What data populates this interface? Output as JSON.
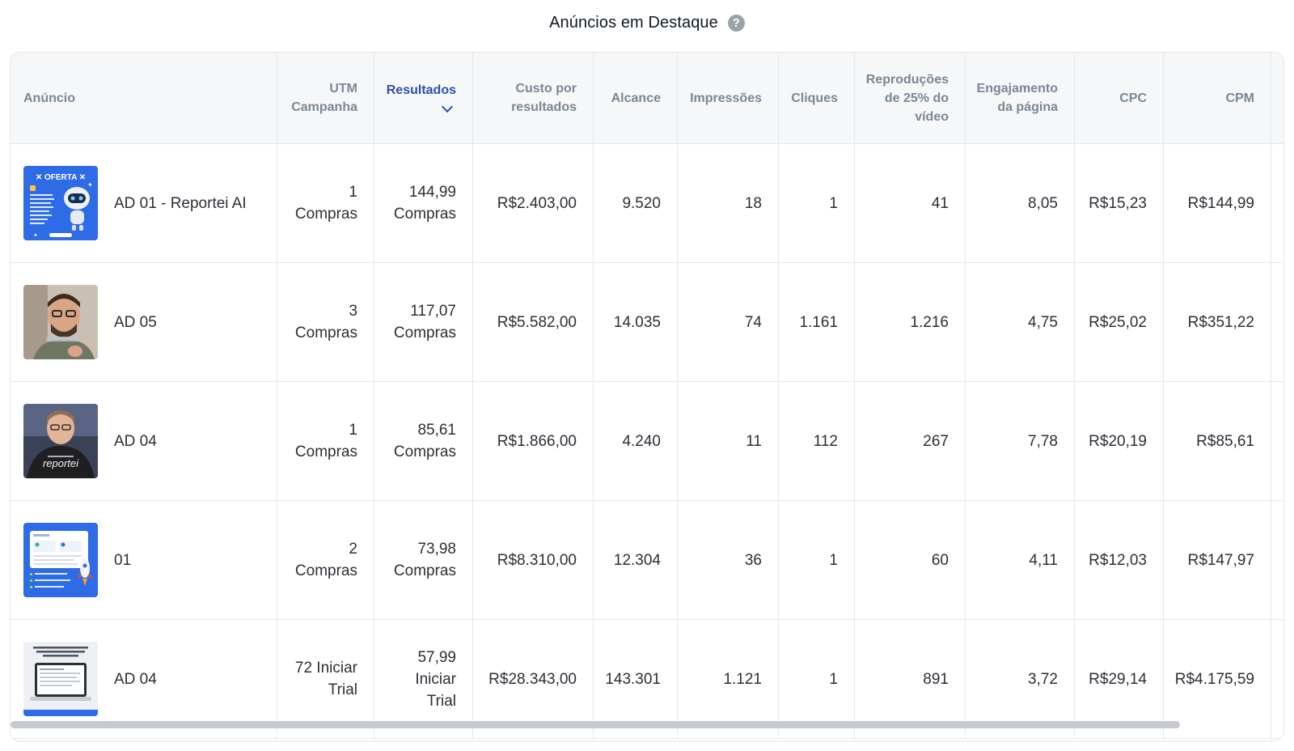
{
  "title": "Anúncios em Destaque",
  "help_glyph": "?",
  "headers": {
    "anuncio": "Anúncio",
    "utm": "UTM Campanha",
    "resultados": "Resultados",
    "custo": "Custo por resultados",
    "alcance": "Alcance",
    "impressoes": "Impressões",
    "cliques": "Cliques",
    "reproducoes": "Reproduções de 25% do vídeo",
    "engajamento": "Engajamento da página",
    "cpc": "CPC",
    "cpm": "CPM"
  },
  "rows": [
    {
      "thumb": "oferta-ai-robot-icon",
      "name": "AD 01 - Reportei AI",
      "utm": "1 Compras",
      "resultados": "144,99 Compras",
      "custo": "R$2.403,00",
      "alcance": "9.520",
      "impressoes": "18",
      "cliques": "1",
      "reproducoes": "41",
      "engajamento": "8,05",
      "cpc": "R$15,23",
      "cpm": "R$144,99"
    },
    {
      "thumb": "man-glasses-photo-icon",
      "name": "AD 05",
      "utm": "3 Compras",
      "resultados": "117,07 Compras",
      "custo": "R$5.582,00",
      "alcance": "14.035",
      "impressoes": "74",
      "cliques": "1.161",
      "reproducoes": "1.216",
      "engajamento": "4,75",
      "cpc": "R$25,02",
      "cpm": "R$351,22"
    },
    {
      "thumb": "man-reportei-shirt-photo-icon",
      "name": "AD 04",
      "utm": "1 Compras",
      "resultados": "85,61 Compras",
      "custo": "R$1.866,00",
      "alcance": "4.240",
      "impressoes": "11",
      "cliques": "112",
      "reproducoes": "267",
      "engajamento": "7,78",
      "cpc": "R$20,19",
      "cpm": "R$85,61"
    },
    {
      "thumb": "dashboard-rocket-icon",
      "name": "01",
      "utm": "2 Compras",
      "resultados": "73,98 Compras",
      "custo": "R$8.310,00",
      "alcance": "12.304",
      "impressoes": "36",
      "cliques": "1",
      "reproducoes": "60",
      "engajamento": "4,11",
      "cpc": "R$12,03",
      "cpm": "R$147,97"
    },
    {
      "thumb": "laptop-report-icon",
      "name": "AD 04",
      "utm": "72 Iniciar Trial",
      "resultados": "57,99 Iniciar Trial",
      "custo": "R$28.343,00",
      "alcance": "143.301",
      "impressoes": "1.121",
      "cliques": "1",
      "reproducoes": "891",
      "engajamento": "3,72",
      "cpc": "R$29,14",
      "cpm": "R$4.175,59"
    }
  ],
  "colors": {
    "accent": "#2c4fb2",
    "header_bg": "#f6f7f9",
    "header_text": "#7b8794",
    "border": "#e5e7eb",
    "thumb_blue": "#2e6be6"
  }
}
